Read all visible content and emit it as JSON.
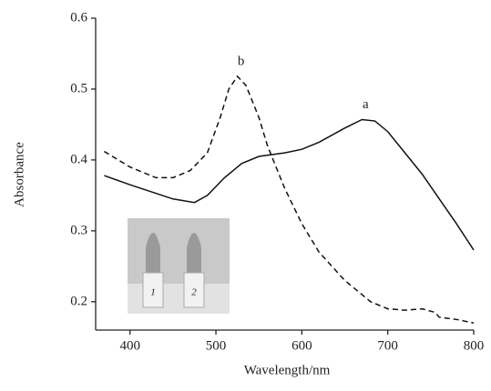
{
  "chart_data": {
    "type": "line",
    "xlabel": "Wavelength/nm",
    "ylabel": "Absorbance",
    "xlim": [
      360,
      800
    ],
    "ylim": [
      0.16,
      0.6
    ],
    "xticks": [
      400,
      500,
      600,
      700,
      800
    ],
    "yticks": [
      0.2,
      0.3,
      0.4,
      0.5,
      0.6
    ],
    "inset_labels": [
      "1",
      "2"
    ],
    "series": [
      {
        "name": "a",
        "color": "#111",
        "dash": false,
        "x": [
          370,
          400,
          450,
          475,
          490,
          510,
          530,
          550,
          580,
          600,
          620,
          650,
          670,
          685,
          700,
          720,
          740,
          760,
          780,
          800
        ],
        "values": [
          0.378,
          0.365,
          0.345,
          0.34,
          0.35,
          0.375,
          0.395,
          0.405,
          0.41,
          0.415,
          0.425,
          0.445,
          0.457,
          0.455,
          0.44,
          0.41,
          0.38,
          0.345,
          0.31,
          0.273
        ]
      },
      {
        "name": "b",
        "color": "#111",
        "dash": true,
        "x": [
          370,
          400,
          430,
          450,
          470,
          490,
          505,
          515,
          525,
          535,
          550,
          560,
          580,
          600,
          620,
          650,
          680,
          700,
          720,
          740,
          755,
          760,
          780,
          800
        ],
        "values": [
          0.412,
          0.39,
          0.375,
          0.375,
          0.385,
          0.41,
          0.46,
          0.5,
          0.518,
          0.505,
          0.46,
          0.42,
          0.36,
          0.31,
          0.27,
          0.23,
          0.2,
          0.19,
          0.188,
          0.19,
          0.185,
          0.178,
          0.175,
          0.17
        ]
      }
    ]
  }
}
